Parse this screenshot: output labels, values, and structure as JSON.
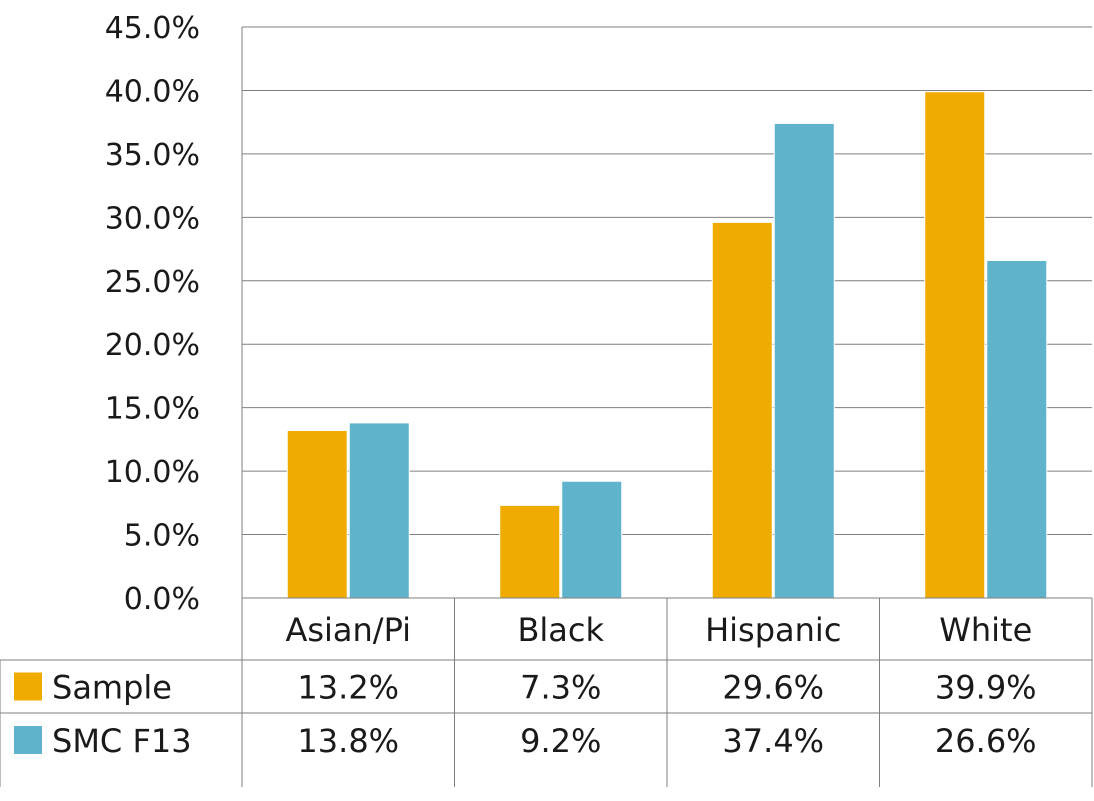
{
  "chart_data": {
    "type": "bar",
    "title": "",
    "xlabel": "",
    "ylabel": "",
    "categories": [
      "Asian/Pi",
      "Black",
      "Hispanic",
      "White"
    ],
    "series": [
      {
        "name": "Sample",
        "values": [
          13.2,
          7.3,
          29.6,
          39.9
        ],
        "labels": [
          "13.2%",
          "7.3%",
          "29.6%",
          "39.9%"
        ],
        "color": "#F0AB00"
      },
      {
        "name": "SMC F13",
        "values": [
          13.8,
          9.2,
          37.4,
          26.6
        ],
        "labels": [
          "13.8%",
          "9.2%",
          "37.4%",
          "26.6%"
        ],
        "color": "#5FB3CB"
      }
    ],
    "ylim": [
      0,
      45
    ],
    "yticks": [
      0,
      5,
      10,
      15,
      20,
      25,
      30,
      35,
      40,
      45
    ],
    "ytick_labels": [
      "0.0%",
      "5.0%",
      "10.0%",
      "15.0%",
      "20.0%",
      "25.0%",
      "30.0%",
      "35.0%",
      "40.0%",
      "45.0%"
    ],
    "grid": true,
    "legend": "data-table-left",
    "data_table": true
  }
}
